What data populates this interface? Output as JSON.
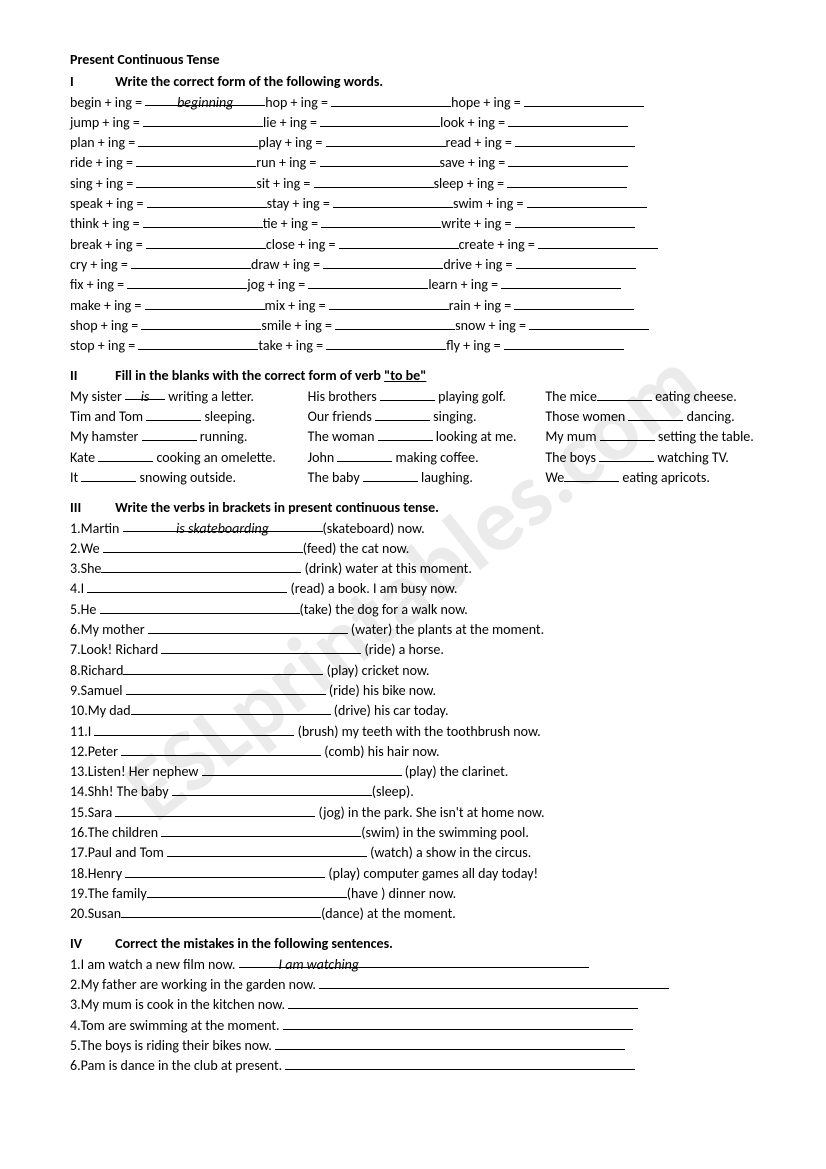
{
  "watermark": "ESLprintables.com",
  "title": "Present Continuous Tense",
  "s1": {
    "num": "I",
    "header": "Write the correct form of the following words.",
    "example": "beginning",
    "rows": [
      [
        "begin + ing =",
        "hop + ing =",
        "hope + ing ="
      ],
      [
        "jump + ing =",
        "lie + ing =",
        "look + ing ="
      ],
      [
        "plan + ing =",
        "play + ing =",
        "read + ing ="
      ],
      [
        "ride + ing =",
        "run + ing =",
        "save + ing ="
      ],
      [
        "sing + ing =",
        "sit + ing =",
        "sleep + ing ="
      ],
      [
        "speak + ing =",
        "stay + ing =",
        "swim + ing ="
      ],
      [
        "think + ing =",
        "tie + ing =",
        "write + ing ="
      ],
      [
        "break + ing =",
        "close + ing =",
        "create + ing ="
      ],
      [
        "cry + ing =",
        "draw + ing =",
        "drive + ing ="
      ],
      [
        "fix + ing =",
        "jog + ing =",
        "learn + ing ="
      ],
      [
        "make + ing =",
        "mix + ing =",
        "rain + ing ="
      ],
      [
        "shop + ing =",
        "smile + ing =",
        "snow + ing ="
      ],
      [
        "stop + ing =",
        "take + ing =",
        "fly + ing ="
      ]
    ]
  },
  "s2": {
    "num": "II",
    "header_pre": "Fill in the blanks with the correct form of verb ",
    "header_u": "\"to be\"",
    "example": "is",
    "rows": [
      [
        "My sister ___ writing a letter.",
        "His brothers ______ playing golf.",
        "The mice________ eating cheese."
      ],
      [
        "Tim and Tom _____ sleeping.",
        "Our friends ____ singing.",
        "Those women ______ dancing."
      ],
      [
        "My hamster _____ running.",
        "The woman _____ looking at me.",
        "My mum _____ setting the table."
      ],
      [
        "Kate _____ cooking an omelette.",
        "John ______ making coffee.",
        "The boys _____ watching TV."
      ],
      [
        "It ____ snowing outside.",
        "The baby ____ laughing.",
        "We_______ eating apricots."
      ]
    ]
  },
  "s3": {
    "num": "III",
    "header": "Write the verbs in brackets in present continuous tense.",
    "example": "is skateboarding",
    "items": [
      {
        "n": "1.",
        "pre": "Martin ",
        "post": "(skateboard) now."
      },
      {
        "n": "2.",
        "pre": "We ",
        "post": "(feed) the cat now."
      },
      {
        "n": "3.",
        "pre": "She",
        "post": " (drink) water at this moment."
      },
      {
        "n": "4.",
        "pre": "I ",
        "post": " (read) a book. I am busy now."
      },
      {
        "n": "5.",
        "pre": "He ",
        "post": "(take) the dog for a walk now."
      },
      {
        "n": "6.",
        "pre": "My mother ",
        "post": " (water) the plants at the moment."
      },
      {
        "n": "7.",
        "pre": "Look! Richard ",
        "post": " (ride) a horse."
      },
      {
        "n": "8.",
        "pre": "Richard",
        "post": " (play) cricket now."
      },
      {
        "n": "9.",
        "pre": "Samuel ",
        "post": " (ride) his bike now."
      },
      {
        "n": "10.",
        "pre": "My dad",
        "post": " (drive) his car today."
      },
      {
        "n": "11.",
        "pre": "I ",
        "post": " (brush) my teeth with the toothbrush now."
      },
      {
        "n": "12.",
        "pre": "Peter ",
        "post": " (comb) his hair now."
      },
      {
        "n": "13.",
        "pre": "Listen! Her nephew ",
        "post": " (play) the clarinet."
      },
      {
        "n": "14.",
        "pre": "Shh! The baby ",
        "post": "(sleep)."
      },
      {
        "n": "15.",
        "pre": "Sara ",
        "post": " (jog) in the park. She isn't at home now."
      },
      {
        "n": "16.",
        "pre": "The children ",
        "post": "(swim) in the swimming pool."
      },
      {
        "n": "17.",
        "pre": "Paul and Tom ",
        "post": " (watch) a show in the circus."
      },
      {
        "n": "18.",
        "pre": "Henry ",
        "post": " (play) computer games all day today!"
      },
      {
        "n": "19.",
        "pre": "The family",
        "post": "(have ) dinner now."
      },
      {
        "n": "20.",
        "pre": "Susan",
        "post": "(dance) at the moment."
      }
    ]
  },
  "s4": {
    "num": "IV",
    "header": "Correct the mistakes in the following sentences.",
    "example": "I am watching",
    "items": [
      {
        "n": "1.",
        "t": "I am watch a new film now."
      },
      {
        "n": "2.",
        "t": "My father are working in the garden now."
      },
      {
        "n": "3.",
        "t": "My mum is cook in the kitchen now."
      },
      {
        "n": "4.",
        "t": "Tom are swimming at the moment."
      },
      {
        "n": "5.",
        "t": "The boys is riding their bikes now."
      },
      {
        "n": "6.",
        "t": "Pam is dance in the club at present."
      }
    ]
  }
}
